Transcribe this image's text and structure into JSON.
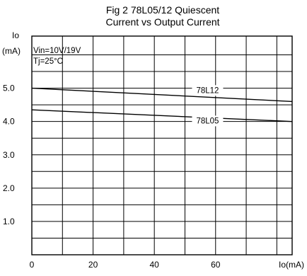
{
  "chart_data": {
    "type": "line",
    "title_line1": "Fig 2 78L05/12 Quiescent",
    "title_line2": "Current vs Output Current",
    "ylabel_line1": "Io",
    "ylabel_line2": "(mA)",
    "xlabel": "Io(mA)",
    "conditions": [
      "Vin=10V/19V",
      "Tj=25°C"
    ],
    "xlim": [
      0,
      85
    ],
    "ylim": [
      0,
      6
    ],
    "x_ticks": [
      0,
      20,
      40,
      60
    ],
    "x_tick_labels": [
      "0",
      "20",
      "40",
      "60"
    ],
    "y_ticks": [
      1,
      2,
      3,
      4,
      5
    ],
    "y_tick_labels": [
      "1.0",
      "2.0",
      "3.0",
      "4.0",
      "5.0"
    ],
    "grid": true,
    "series": [
      {
        "name": "78L12",
        "x": [
          0,
          85
        ],
        "y": [
          5.0,
          4.6
        ],
        "label_at_x": 53
      },
      {
        "name": "78L05",
        "x": [
          0,
          85
        ],
        "y": [
          4.35,
          4.0
        ],
        "label_at_x": 53
      }
    ]
  }
}
